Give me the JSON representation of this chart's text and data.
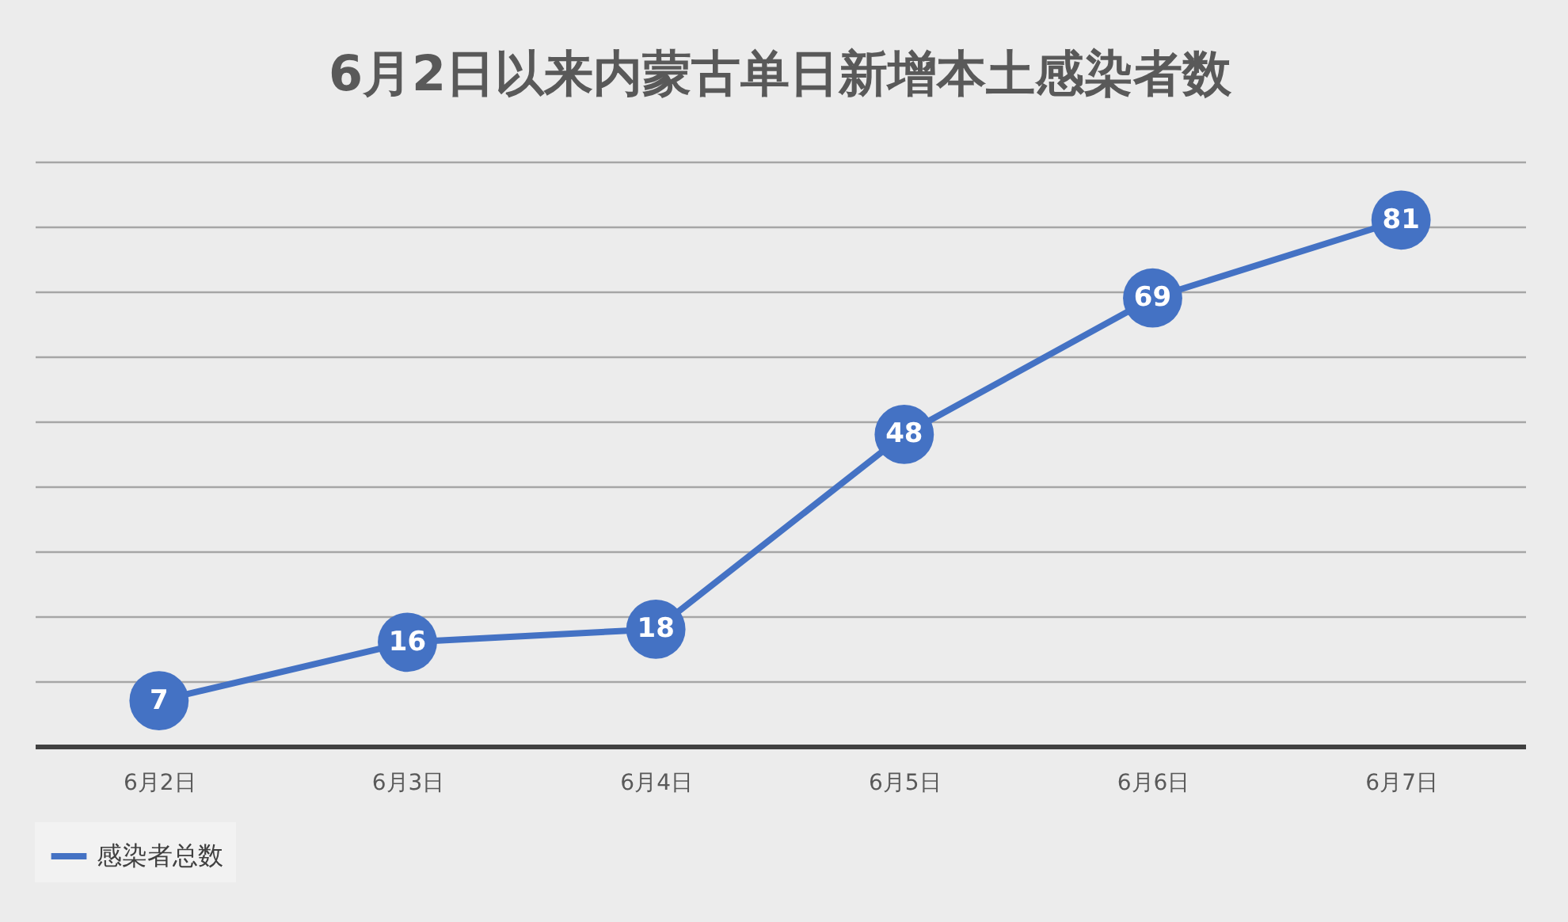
{
  "chart_data": {
    "type": "line",
    "title": "6月2日以来内蒙古单日新增本土感染者数",
    "categories": [
      "6月2日",
      "6月3日",
      "6月4日",
      "6月5日",
      "6月6日",
      "6月7日"
    ],
    "series": [
      {
        "name": "感染者总数",
        "color": "#4472c4",
        "values": [
          7,
          16,
          18,
          48,
          69,
          81
        ]
      }
    ],
    "ylim": [
      0,
      90
    ],
    "yticks": [
      {
        "value": 0,
        "label": null
      },
      {
        "value": 10,
        "label": null
      },
      {
        "value": 20,
        "label": null
      },
      {
        "value": 30,
        "label": null
      },
      {
        "value": 40,
        "label": null
      },
      {
        "value": 50,
        "label": null
      },
      {
        "value": 60,
        "label": null
      },
      {
        "value": 70,
        "label": null
      },
      {
        "value": 80,
        "label": null
      },
      {
        "value": 90,
        "label": null
      }
    ],
    "tick_labels": "x",
    "grid": "y",
    "legend": "bottom",
    "marker": "circle",
    "line_style": "solid",
    "data_labels": true
  }
}
